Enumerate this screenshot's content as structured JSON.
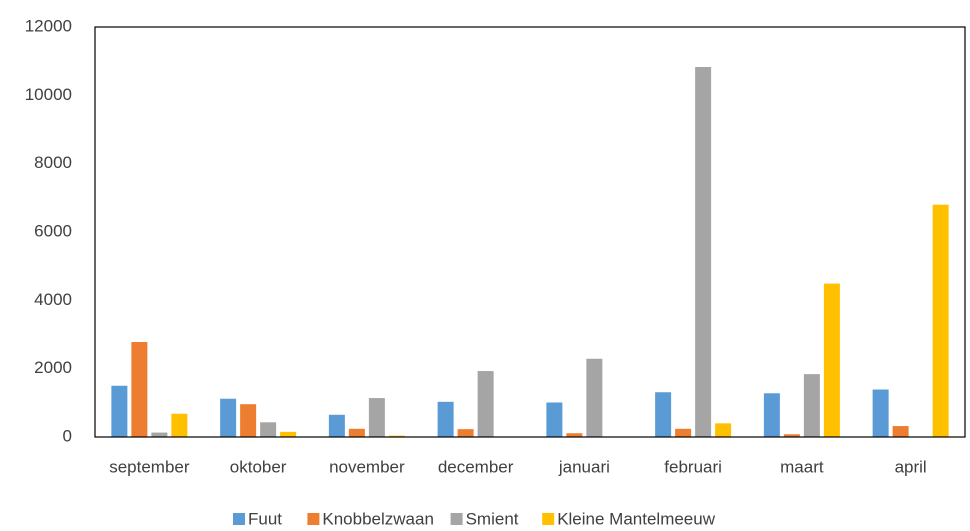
{
  "chart_data": {
    "type": "bar",
    "categories": [
      "september",
      "oktober",
      "november",
      "december",
      "januari",
      "februari",
      "maart",
      "april"
    ],
    "series": [
      {
        "name": "Fuut",
        "color": "#5b9bd5",
        "values": [
          1500,
          1120,
          650,
          1030,
          1010,
          1310,
          1280,
          1390
        ]
      },
      {
        "name": "Knobbelzwaan",
        "color": "#ed7d31",
        "values": [
          2780,
          960,
          240,
          230,
          110,
          240,
          80,
          320
        ]
      },
      {
        "name": "Smient",
        "color": "#a5a5a5",
        "values": [
          130,
          430,
          1140,
          1930,
          2290,
          10830,
          1840,
          0
        ]
      },
      {
        "name": "Kleine Mantelmeeuw",
        "color": "#ffc000",
        "values": [
          680,
          150,
          40,
          0,
          0,
          400,
          4490,
          6800
        ]
      }
    ],
    "ylim": [
      0,
      12000
    ],
    "yticks": [
      0,
      2000,
      4000,
      6000,
      8000,
      10000,
      12000
    ],
    "grid": false,
    "legend": "bottom"
  }
}
